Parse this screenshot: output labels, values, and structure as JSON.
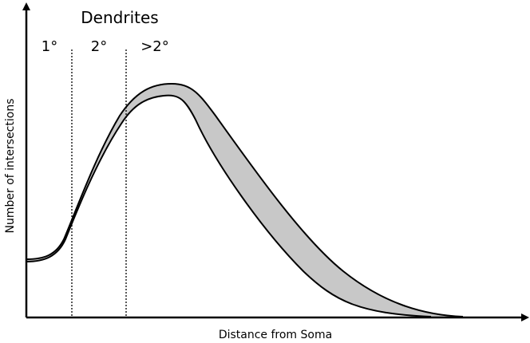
{
  "header": {
    "title": "Dendrites"
  },
  "regions": [
    "1°",
    "2°",
    ">2°"
  ],
  "axes": {
    "y_label": "Number of intersections",
    "x_label": "Distance from Soma"
  }
}
